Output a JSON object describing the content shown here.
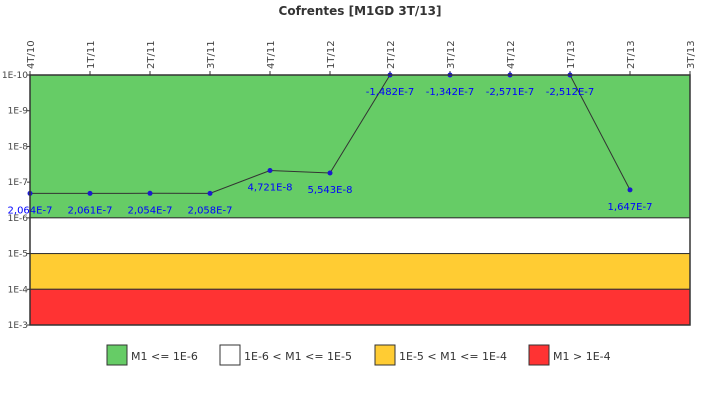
{
  "chart_data": {
    "type": "line",
    "title": "Cofrentes [M1GD 3T/13]",
    "xlabel": "",
    "ylabel": "",
    "scale": "log",
    "y_inverted": true,
    "ylim": [
      1e-10,
      0.001
    ],
    "y_ticks": [
      "1E-10",
      "1E-9",
      "1E-8",
      "1E-7",
      "1E-6",
      "1E-5",
      "1E-4",
      "1E-3"
    ],
    "categories": [
      "4T/10",
      "1T/11",
      "2T/11",
      "3T/11",
      "4T/11",
      "1T/12",
      "2T/12",
      "3T/12",
      "4T/12",
      "1T/13",
      "2T/13",
      "3T/13"
    ],
    "series": [
      {
        "name": "M1",
        "color": "#000099",
        "values": [
          2.064e-07,
          2.061e-07,
          2.054e-07,
          2.058e-07,
          4.721e-08,
          5.543e-08,
          -1.482e-07,
          -1.342e-07,
          -2.571e-07,
          -2.512e-07,
          1.647e-07,
          null
        ],
        "labels": [
          "2,064E-7",
          "2,061E-7",
          "2,054E-7",
          "2,058E-7",
          "4,721E-8",
          "5,543E-8",
          "-1,482E-7",
          "-1,342E-7",
          "-2,571E-7",
          "-2,512E-7",
          "1,647E-7",
          null
        ]
      }
    ],
    "bands": [
      {
        "from": 1e-10,
        "to": 1e-06,
        "color": "#66cc66",
        "label": "M1 <= 1E-6"
      },
      {
        "from": 1e-06,
        "to": 1e-05,
        "color": "#ffffff",
        "label": "1E-6 < M1 <= 1E-5"
      },
      {
        "from": 1e-05,
        "to": 0.0001,
        "color": "#ffcc33",
        "label": "1E-5 < M1 <= 1E-4"
      },
      {
        "from": 0.0001,
        "to": 0.001,
        "color": "#ff3333",
        "label": "M1 > 1E-4"
      }
    ],
    "legend_position": "bottom",
    "grid": false
  }
}
